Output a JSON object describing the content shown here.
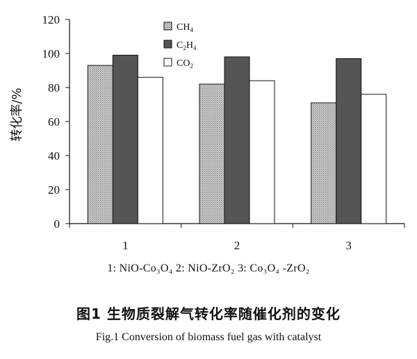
{
  "chart_data": {
    "type": "bar",
    "categories": [
      "1",
      "2",
      "3"
    ],
    "series": [
      {
        "name": "CH4",
        "values": [
          93,
          82,
          71
        ],
        "color": "#c8c8c8",
        "pattern": "dotted"
      },
      {
        "name": "C2H4",
        "values": [
          99,
          98,
          97
        ],
        "color": "#555555",
        "pattern": "solid"
      },
      {
        "name": "CO2",
        "values": [
          86,
          84,
          76
        ],
        "color": "#ffffff",
        "pattern": "solid"
      }
    ],
    "ylabel": "转化率/%",
    "ylim": [
      0,
      120
    ],
    "yticks": [
      0,
      20,
      40,
      60,
      80,
      100,
      120
    ],
    "grid": false,
    "legend_position": "top"
  },
  "legend_labels": [
    {
      "main": "CH",
      "sub": "4",
      "rest": ""
    },
    {
      "main": "C",
      "sub": "2",
      "rest": "H",
      "sub2": "4"
    },
    {
      "main": "CO",
      "sub": "2",
      "rest": ""
    }
  ],
  "catalyst_note": "1: NiO-Co₃O₄  2: NiO-ZrO₂  3: Co₃O₄ -ZrO₂",
  "caption_cn": "图1   生物质裂解气转化率随催化剂的变化",
  "caption_en": "Fig.1    Conversion of biomass fuel gas with catalyst"
}
